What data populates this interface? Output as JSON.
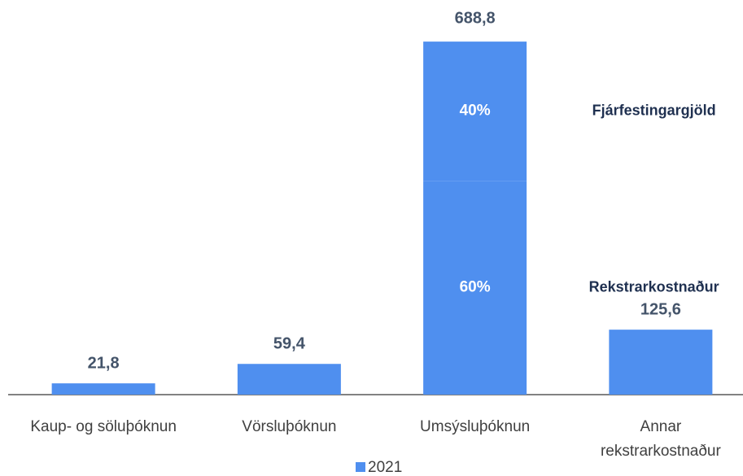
{
  "chart_data": {
    "type": "bar",
    "categories": [
      "Kaup- og söluþóknun",
      "Vörsluþóknun",
      "Umsýsluþóknun",
      "Annar rekstrarkostnaður"
    ],
    "series": [
      {
        "name": "2021",
        "color": "#4f8fef",
        "values": [
          21.8,
          59.4,
          688.8,
          125.6
        ],
        "value_labels": [
          "21,8",
          "59,4",
          "688,8",
          "125,6"
        ]
      }
    ],
    "split": {
      "category": 2,
      "segments": [
        {
          "name": "Rekstrarkostnaður",
          "value": 60,
          "label": "60%"
        },
        {
          "name": "Fjárfestingargjöld",
          "value": 40,
          "label": "40%"
        }
      ]
    },
    "ylim": [
      0,
      700
    ],
    "legend": "bottom"
  }
}
